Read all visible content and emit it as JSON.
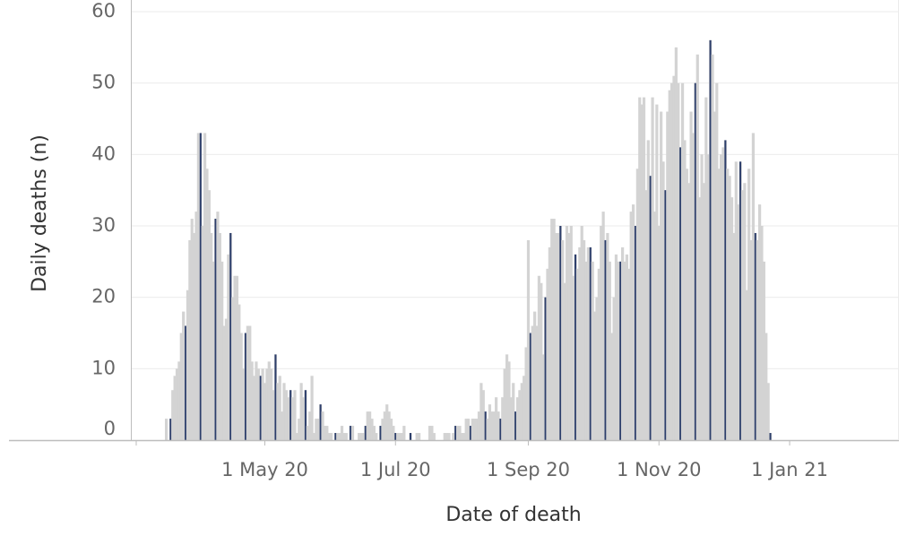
{
  "chart_data": {
    "type": "bar",
    "xlabel": "Date of death",
    "ylabel": "Daily deaths (n)",
    "ylim": [
      0,
      60
    ],
    "y_ticks": [
      0,
      10,
      20,
      30,
      40,
      50,
      60
    ],
    "x_tick_labels": [
      {
        "label": "1 May 20",
        "date": "2020-05-01"
      },
      {
        "label": "1 Jul 20",
        "date": "2020-07-01"
      },
      {
        "label": "1 Sep 20",
        "date": "2020-09-01"
      },
      {
        "label": "1 Nov 20",
        "date": "2020-11-01"
      },
      {
        "label": "1 Jan 21",
        "date": "2021-01-01"
      }
    ],
    "grid": true,
    "legend": "none",
    "colors": {
      "bar": "#d3d3d3",
      "highlight": "#2c3e6b",
      "grid": "#ebebeb",
      "axis": "#bdbdbd"
    },
    "series": [
      {
        "start_date": "2020-03-16",
        "values": [
          3,
          0,
          3,
          7,
          9,
          10,
          11,
          15,
          18,
          16,
          21,
          28,
          31,
          29,
          32,
          43,
          43,
          30,
          43,
          38,
          35,
          29,
          25,
          31,
          32,
          29,
          25,
          16,
          17,
          26,
          29,
          20,
          23,
          23,
          19,
          15,
          10,
          15,
          16,
          16,
          11,
          9,
          11,
          10,
          9,
          10,
          8,
          10,
          11,
          10,
          7,
          12,
          8,
          9,
          4,
          8,
          7,
          6,
          7,
          6,
          7,
          1,
          3,
          8,
          6,
          7,
          2,
          4,
          9,
          1,
          3,
          3,
          5,
          4,
          2,
          2,
          1,
          1,
          0,
          1,
          1,
          1,
          2,
          1,
          1,
          0,
          2,
          2,
          0,
          0,
          1,
          1,
          1,
          2,
          4,
          4,
          3,
          2,
          1,
          0,
          2,
          3,
          4,
          5,
          4,
          3,
          2,
          1,
          1,
          1,
          1,
          2,
          0,
          0,
          1,
          0,
          0,
          1,
          1,
          0,
          0,
          0,
          0,
          2,
          2,
          1,
          0,
          0,
          0,
          0,
          1,
          1,
          1,
          0,
          1,
          2,
          2,
          2,
          1,
          1,
          3,
          3,
          2,
          3,
          3,
          3,
          4,
          8,
          7,
          4,
          3,
          5,
          4,
          4,
          6,
          4,
          3,
          6,
          10,
          12,
          11,
          6,
          8,
          4,
          6,
          7,
          8,
          9,
          13,
          28,
          15,
          16,
          18,
          16,
          23,
          22,
          12,
          20,
          24,
          27,
          31,
          31,
          29,
          29,
          30,
          28,
          22,
          30,
          29,
          30,
          23,
          26,
          24,
          27,
          30,
          28,
          25,
          27,
          27,
          25,
          18,
          20,
          24,
          30,
          32,
          28,
          29,
          25,
          15,
          20,
          26,
          25,
          25,
          27,
          25,
          26,
          24,
          32,
          33,
          30,
          38,
          48,
          47,
          48,
          35,
          42,
          37,
          48,
          32,
          47,
          30,
          46,
          39,
          35,
          46,
          49,
          50,
          51,
          55,
          50,
          41,
          50,
          42,
          38,
          36,
          46,
          43,
          50,
          54,
          34,
          40,
          36,
          48,
          40,
          56,
          54,
          46,
          50,
          38,
          40,
          41,
          42,
          38,
          37,
          34,
          29,
          39,
          33,
          39,
          35,
          36,
          21,
          38,
          28,
          43,
          29,
          28,
          33,
          30,
          25,
          15,
          8,
          1
        ]
      }
    ],
    "highlight_every_n_days": 7,
    "highlight_offset": 2
  }
}
